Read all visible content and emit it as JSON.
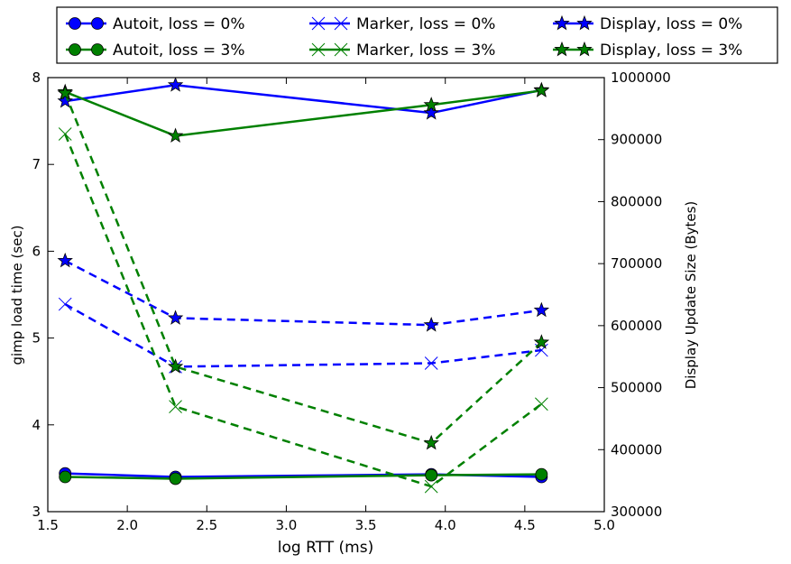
{
  "chart_data": {
    "type": "line",
    "xlabel": "log RTT (ms)",
    "ylabel_left": "gimp load time (sec)",
    "ylabel_right": "Display Update Size (Bytes)",
    "xlim": [
      1.5,
      5.0
    ],
    "ylim_left": [
      3,
      8
    ],
    "ylim_right": [
      300000,
      1000000
    ],
    "x_ticks": [
      "1.5",
      "2.0",
      "2.5",
      "3.0",
      "3.5",
      "4.0",
      "4.5",
      "5.0"
    ],
    "y_left_ticks": [
      "3",
      "4",
      "5",
      "6",
      "7",
      "8"
    ],
    "y_right_ticks": [
      "300000",
      "400000",
      "500000",
      "600000",
      "700000",
      "800000",
      "900000",
      "1000000"
    ],
    "grid": false,
    "legend_position": "top",
    "x": [
      1.609,
      2.303,
      3.912,
      4.605
    ],
    "series": [
      {
        "name": "Autoit, loss = 0%",
        "axis": "left",
        "marker": "circle",
        "line": "solid",
        "color": "#0000ff",
        "values": [
          3.44,
          3.4,
          3.43,
          3.4
        ]
      },
      {
        "name": "Autoit, loss = 3%",
        "axis": "left",
        "marker": "circle",
        "line": "solid",
        "color": "#008000",
        "values": [
          3.4,
          3.38,
          3.42,
          3.43
        ]
      },
      {
        "name": "Marker, loss = 0%",
        "axis": "left",
        "marker": "x",
        "line": "dashed",
        "color": "#0000ff",
        "values": [
          5.39,
          4.67,
          4.71,
          4.86
        ]
      },
      {
        "name": "Marker, loss = 3%",
        "axis": "left",
        "marker": "x",
        "line": "dashed",
        "color": "#008000",
        "values": [
          7.35,
          4.21,
          3.29,
          4.24
        ]
      },
      {
        "name": "Display, loss = 0%",
        "axis": "right",
        "marker": "star",
        "line": "solid",
        "color": "#0000ff",
        "values": [
          962000,
          988000,
          943000,
          980000
        ]
      },
      {
        "name": "Display, loss = 3%",
        "axis": "right",
        "marker": "star",
        "line": "solid",
        "color": "#008000",
        "values": [
          977000,
          906000,
          956000,
          979000
        ]
      },
      {
        "name": "",
        "axis": "left",
        "marker": "star",
        "line": "dashed",
        "color": "#0000ff",
        "values": [
          5.89,
          5.23,
          5.15,
          5.32
        ]
      },
      {
        "name": "",
        "axis": "left",
        "marker": "star",
        "line": "dashed",
        "color": "#008000",
        "values": [
          7.82,
          4.67,
          3.79,
          4.95
        ]
      }
    ]
  }
}
